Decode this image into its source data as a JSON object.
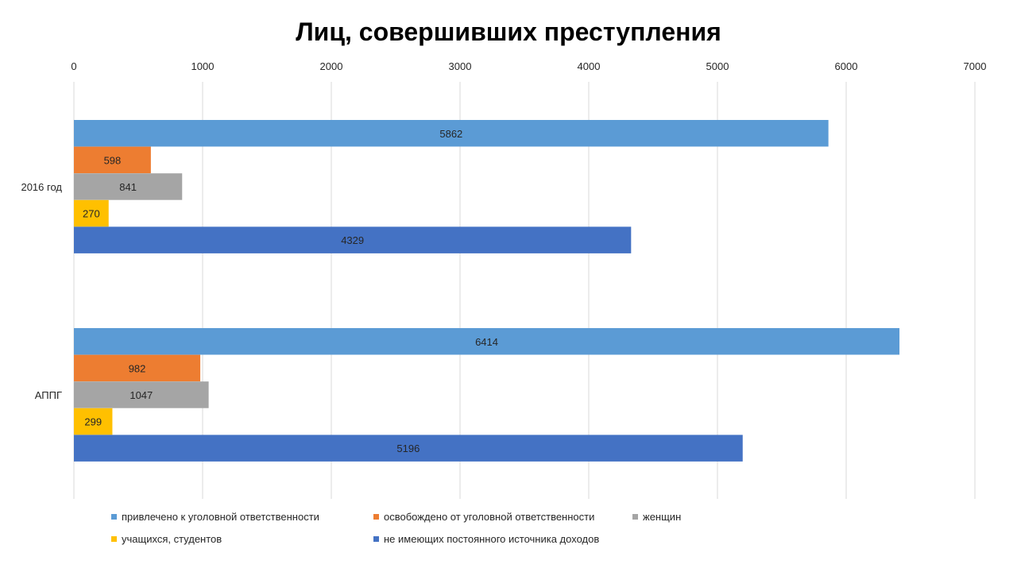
{
  "chart_data": {
    "type": "bar",
    "orientation": "horizontal",
    "title": "Лиц, совершивших преступления",
    "xlabel": "",
    "ylabel": "",
    "xlim": [
      0,
      7000
    ],
    "x_ticks": [
      "0",
      "1000",
      "2000",
      "3000",
      "4000",
      "5000",
      "6000",
      "7000"
    ],
    "x_tick_values": [
      0,
      1000,
      2000,
      3000,
      4000,
      5000,
      6000,
      7000
    ],
    "categories": [
      "2016 год",
      "АППГ"
    ],
    "grid": "vertical",
    "axis_position": "top",
    "legend_position": "bottom",
    "series": [
      {
        "name": "привлечено к уголовной ответственности",
        "color": "#5B9BD5",
        "values": [
          5862,
          6414
        ]
      },
      {
        "name": "освобождено от уголовной ответственности",
        "color": "#ED7D31",
        "values": [
          598,
          982
        ]
      },
      {
        "name": "женщин",
        "color": "#A5A5A5",
        "values": [
          841,
          1047
        ]
      },
      {
        "name": "учащихся, студентов",
        "color": "#FFC000",
        "values": [
          270,
          299
        ]
      },
      {
        "name": "не имеющих постоянного источника доходов",
        "color": "#4472C4",
        "values": [
          4329,
          5196
        ]
      }
    ]
  }
}
